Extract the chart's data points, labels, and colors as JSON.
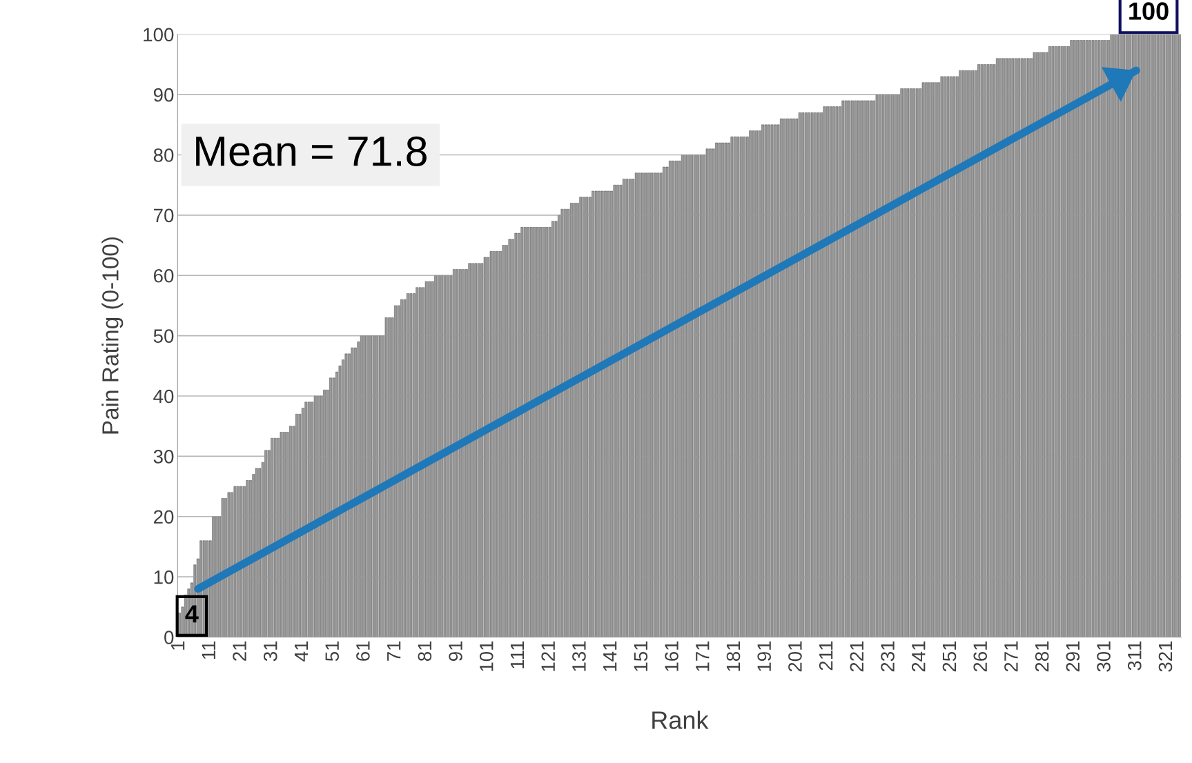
{
  "chart_data": {
    "type": "bar",
    "xlabel": "Rank",
    "ylabel": "Pain Rating (0-100)",
    "categories": [
      "1",
      null,
      null,
      null,
      null,
      null,
      null,
      null,
      null,
      null,
      "11",
      null,
      null,
      null,
      null,
      null,
      null,
      null,
      null,
      null,
      "21",
      null,
      null,
      null,
      null,
      null,
      null,
      null,
      null,
      null,
      "31",
      null,
      null,
      null,
      null,
      null,
      null,
      null,
      null,
      null,
      "41",
      null,
      null,
      null,
      null,
      null,
      null,
      null,
      null,
      null,
      "51",
      null,
      null,
      null,
      null,
      null,
      null,
      null,
      null,
      null,
      "61",
      null,
      null,
      null,
      null,
      null,
      null,
      null,
      null,
      null,
      "71",
      null,
      null,
      null,
      null,
      null,
      null,
      null,
      null,
      null,
      "81",
      null,
      null,
      null,
      null,
      null,
      null,
      null,
      null,
      null,
      "91",
      null,
      null,
      null,
      null,
      null,
      null,
      null,
      null,
      null,
      "101",
      null,
      null,
      null,
      null,
      null,
      null,
      null,
      null,
      null,
      "111",
      null,
      null,
      null,
      null,
      null,
      null,
      null,
      null,
      null,
      "121",
      null,
      null,
      null,
      null,
      null,
      null,
      null,
      null,
      null,
      "131",
      null,
      null,
      null,
      null,
      null,
      null,
      null,
      null,
      null,
      "141",
      null,
      null,
      null,
      null,
      null,
      null,
      null,
      null,
      null,
      "151",
      null,
      null,
      null,
      null,
      null,
      null,
      null,
      null,
      null,
      "161",
      null,
      null,
      null,
      null,
      null,
      null,
      null,
      null,
      null,
      "171",
      null,
      null,
      null,
      null,
      null,
      null,
      null,
      null,
      null,
      "181",
      null,
      null,
      null,
      null,
      null,
      null,
      null,
      null,
      null,
      "191",
      null,
      null,
      null,
      null,
      null,
      null,
      null,
      null,
      null,
      "201",
      null,
      null,
      null,
      null,
      null,
      null,
      null,
      null,
      null,
      "211",
      null,
      null,
      null,
      null,
      null,
      null,
      null,
      null,
      null,
      "221",
      null,
      null,
      null,
      null,
      null,
      null,
      null,
      null,
      null,
      "231",
      null,
      null,
      null,
      null,
      null,
      null,
      null,
      null,
      null,
      "241",
      null,
      null,
      null,
      null,
      null,
      null,
      null,
      null,
      null,
      "251",
      null,
      null,
      null,
      null,
      null,
      null,
      null,
      null,
      null,
      "261",
      null,
      null,
      null,
      null,
      null,
      null,
      null,
      null,
      null,
      "271",
      null,
      null,
      null,
      null,
      null,
      null,
      null,
      null,
      null,
      "281",
      null,
      null,
      null,
      null,
      null,
      null,
      null,
      null,
      null,
      "291",
      null,
      null,
      null,
      null,
      null,
      null,
      null,
      null,
      null,
      "301",
      null,
      null,
      null,
      null,
      null,
      null,
      null,
      null,
      null,
      "311",
      null,
      null,
      null,
      null,
      null,
      null,
      null,
      null,
      null,
      "321",
      null,
      null,
      null,
      null
    ],
    "values": [
      4,
      5,
      7,
      8,
      9,
      12,
      13,
      16,
      16,
      16,
      16,
      20,
      20,
      20,
      23,
      23,
      24,
      24,
      25,
      25,
      25,
      25,
      26,
      26,
      27,
      28,
      28,
      29,
      31,
      31,
      33,
      33,
      33,
      34,
      34,
      34,
      35,
      35,
      37,
      37,
      38,
      39,
      39,
      39,
      40,
      40,
      40,
      41,
      41,
      43,
      43,
      44,
      45,
      46,
      47,
      47,
      48,
      48,
      49,
      50,
      50,
      50,
      50,
      50,
      50,
      50,
      50,
      53,
      53,
      53,
      55,
      55,
      56,
      56,
      57,
      57,
      57,
      58,
      58,
      58,
      59,
      59,
      59,
      60,
      60,
      60,
      60,
      60,
      60,
      61,
      61,
      61,
      61,
      61,
      62,
      62,
      62,
      62,
      62,
      63,
      63,
      64,
      64,
      64,
      64,
      65,
      65,
      66,
      66,
      67,
      67,
      68,
      68,
      68,
      68,
      68,
      68,
      68,
      68,
      68,
      68,
      69,
      69,
      70,
      71,
      71,
      71,
      72,
      72,
      72,
      73,
      73,
      73,
      73,
      74,
      74,
      74,
      74,
      74,
      74,
      74,
      75,
      75,
      75,
      76,
      76,
      76,
      76,
      77,
      77,
      77,
      77,
      77,
      77,
      77,
      77,
      77,
      78,
      78,
      79,
      79,
      79,
      79,
      80,
      80,
      80,
      80,
      80,
      80,
      80,
      80,
      81,
      81,
      81,
      82,
      82,
      82,
      82,
      82,
      83,
      83,
      83,
      83,
      83,
      83,
      84,
      84,
      84,
      84,
      85,
      85,
      85,
      85,
      85,
      85,
      86,
      86,
      86,
      86,
      86,
      86,
      87,
      87,
      87,
      87,
      87,
      87,
      87,
      87,
      88,
      88,
      88,
      88,
      88,
      88,
      89,
      89,
      89,
      89,
      89,
      89,
      89,
      89,
      89,
      89,
      89,
      90,
      90,
      90,
      90,
      90,
      90,
      90,
      90,
      91,
      91,
      91,
      91,
      91,
      91,
      91,
      92,
      92,
      92,
      92,
      92,
      92,
      93,
      93,
      93,
      93,
      93,
      93,
      94,
      94,
      94,
      94,
      94,
      94,
      95,
      95,
      95,
      95,
      95,
      95,
      96,
      96,
      96,
      96,
      96,
      96,
      96,
      96,
      96,
      96,
      96,
      96,
      97,
      97,
      97,
      97,
      97,
      98,
      98,
      98,
      98,
      98,
      98,
      98,
      99,
      99,
      99,
      99,
      99,
      99,
      99,
      99,
      99,
      99,
      99,
      99,
      99,
      100,
      100,
      100,
      100,
      100,
      100,
      100,
      100,
      100,
      100,
      100,
      100,
      100,
      100,
      100,
      100,
      100,
      100,
      100,
      100,
      100,
      100,
      100
    ],
    "color": "#9a9a9a",
    "ylim": [
      0,
      100
    ],
    "yticks": [
      0,
      10,
      20,
      30,
      40,
      50,
      60,
      70,
      80,
      90,
      100
    ],
    "grid": "y",
    "annotations": [
      "Mean = 71.8",
      {
        "text": "4",
        "x": "1",
        "y": 4
      },
      {
        "text": "100",
        "x": "311",
        "y": 100
      }
    ]
  }
}
